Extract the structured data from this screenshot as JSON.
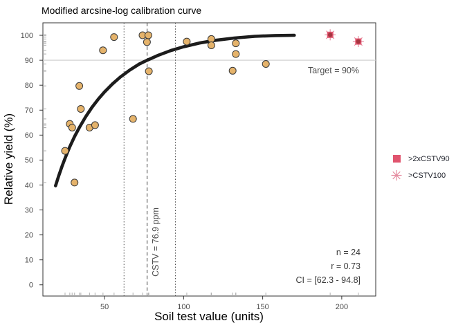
{
  "chart_data": {
    "type": "scatter",
    "title": "Modified arcsine-log calibration curve",
    "xlabel": "Soil test value (units)",
    "ylabel": "Relative yield (%)",
    "xlim": [
      11,
      221.5
    ],
    "ylim": [
      -4.5,
      105
    ],
    "x_ticks": [
      50,
      100,
      150,
      200
    ],
    "y_ticks": [
      0,
      10,
      20,
      30,
      40,
      50,
      60,
      70,
      80,
      90,
      100
    ],
    "grid": "off",
    "legend_position": "right",
    "target": {
      "y": 90,
      "label": "Target = 90%"
    },
    "cstv": {
      "x": 76.9,
      "label": "CSTV = 76.9 ppm"
    },
    "ci_bounds": [
      62.3,
      94.8
    ],
    "stats": {
      "n": "n = 24",
      "r": "r = 0.73",
      "ci": "CI = [62.3 - 94.8]"
    },
    "series": [
      {
        "name": "observations",
        "marker": "circle",
        "points": [
          [
            25,
            53.7
          ],
          [
            28,
            64.5
          ],
          [
            29.5,
            63
          ],
          [
            31,
            41
          ],
          [
            34,
            79.7
          ],
          [
            35,
            70.5
          ],
          [
            40.5,
            63
          ],
          [
            44,
            64
          ],
          [
            49,
            94
          ],
          [
            56,
            99.3
          ],
          [
            68,
            66.5
          ],
          [
            74,
            100
          ],
          [
            77.7,
            100
          ],
          [
            76.8,
            97.3
          ],
          [
            78,
            85.6
          ],
          [
            102,
            97.5
          ],
          [
            117.5,
            98.5
          ],
          [
            117.5,
            96
          ],
          [
            133,
            96.8
          ],
          [
            133,
            92.5
          ],
          [
            131,
            85.8
          ],
          [
            152,
            88.5
          ]
        ]
      },
      {
        "name": "flagged-high-cstv",
        "marker": "square-asterisk",
        "points": [
          [
            192.7,
            100.2
          ],
          [
            210.5,
            97.5
          ]
        ]
      }
    ],
    "curve": {
      "name": "arcsine-log calibration curve",
      "points": [
        [
          19,
          39.7
        ],
        [
          21,
          43.7
        ],
        [
          23,
          47.3
        ],
        [
          25,
          50.7
        ],
        [
          28,
          55.3
        ],
        [
          31,
          59.4
        ],
        [
          34,
          63.0
        ],
        [
          38,
          67.3
        ],
        [
          42,
          71.1
        ],
        [
          46,
          74.4
        ],
        [
          50,
          77.3
        ],
        [
          55,
          80.5
        ],
        [
          60,
          83.3
        ],
        [
          66,
          86.1
        ],
        [
          72,
          88.5
        ],
        [
          76.9,
          90.0
        ],
        [
          84,
          92.0
        ],
        [
          92,
          93.9
        ],
        [
          100,
          95.4
        ],
        [
          110,
          96.9
        ],
        [
          120,
          98.0
        ],
        [
          132,
          98.9
        ],
        [
          145,
          99.6
        ],
        [
          158,
          99.9
        ],
        [
          170,
          100.0
        ]
      ]
    },
    "legend": [
      {
        "label": ">2xCSTV90",
        "marker": "square"
      },
      {
        "label": ">CSTV100",
        "marker": "asterisk"
      }
    ],
    "colors": {
      "point_fill": "#E5B36B",
      "point_stroke": "#383838",
      "curve": "#1C1C1C",
      "target_line": "#C9C9C9",
      "guide": "#3A3A3A",
      "accent_pink": "#E0546E",
      "accent_ray": "#E58CA0",
      "accent_dark": "#A63540",
      "rug": "#ABABAB",
      "tick": "#333333",
      "tick_label": "#4D4D4D",
      "annotation": "#4D4D4D",
      "stats_text": "#3A3A3A",
      "legend_text": "#22252E"
    }
  }
}
